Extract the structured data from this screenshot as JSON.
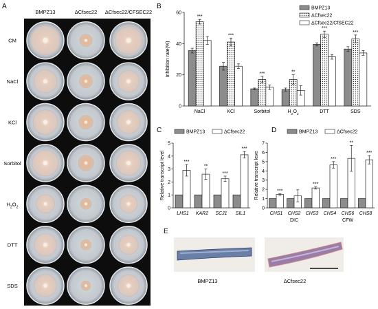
{
  "panels": {
    "a": "A",
    "b": "B",
    "c": "C",
    "d": "D",
    "e": "E"
  },
  "panel_a": {
    "strains": [
      "BMPZ13",
      "ΔCfsec22",
      "ΔCfsec22/CFSEC22"
    ],
    "conditions": [
      "CM",
      "NaCl",
      "KCl",
      "Sorbitol",
      "H2O2",
      "DTT",
      "SDS"
    ]
  },
  "panel_e": {
    "labels": [
      "BMPZ13",
      "ΔCfsec22"
    ]
  },
  "colors": {
    "wt": "#8c8c8c",
    "mutant": "#ffffff",
    "complemented": "#ffffff",
    "bar_edge": "#222222",
    "plate_bg": "#0d0d0d"
  },
  "chart_data": [
    {
      "panel": "B",
      "type": "bar",
      "ylabel": "Inhibition rate(%)",
      "ylim": [
        0,
        60
      ],
      "yticks": [
        0,
        20,
        40,
        60
      ],
      "categories": [
        "NaCl",
        "KCl",
        "Sorbitol",
        "H2O2",
        "DTT",
        "SDS"
      ],
      "series": [
        {
          "name": "BMPZ13",
          "values": [
            35.5,
            25.5,
            11,
            10.5,
            39.5,
            36.5
          ],
          "errors": [
            1.5,
            2.5,
            0.5,
            1,
            1,
            1.5
          ],
          "pattern": "solid"
        },
        {
          "name": "ΔCfsec22",
          "values": [
            54,
            41,
            17,
            17,
            46,
            43
          ],
          "errors": [
            1.5,
            2.5,
            2,
            3,
            2,
            2.5
          ],
          "pattern": "dots"
        },
        {
          "name": "ΔCfsec22/CfSEC22",
          "values": [
            42,
            25.5,
            12,
            10,
            31.5,
            34
          ],
          "errors": [
            2.5,
            1.5,
            1.5,
            3,
            1.5,
            1.5
          ],
          "pattern": "white"
        }
      ],
      "significance": [
        "***",
        "***",
        "***",
        "**",
        "***",
        "***"
      ],
      "legend": "top-right"
    },
    {
      "panel": "C",
      "type": "bar",
      "ylabel": "Relative transcript level",
      "ylim": [
        0,
        5
      ],
      "yticks": [
        0,
        1,
        2,
        3,
        4,
        5
      ],
      "categories": [
        "LHS1",
        "KAR2",
        "SCJ1",
        "SIL1"
      ],
      "series": [
        {
          "name": "BMPZ13",
          "values": [
            1,
            1,
            1,
            1
          ],
          "errors": [
            0,
            0,
            0,
            0
          ],
          "pattern": "solid"
        },
        {
          "name": "ΔCfsec22",
          "values": [
            2.9,
            2.6,
            2.25,
            4.1
          ],
          "errors": [
            0.45,
            0.4,
            0.2,
            0.25
          ],
          "pattern": "white"
        }
      ],
      "significance": [
        "***",
        "**",
        "***",
        "***"
      ],
      "legend": "top"
    },
    {
      "panel": "D",
      "type": "bar",
      "ylabel": "Relative transcript leve",
      "ylim": [
        0,
        7
      ],
      "yticks": [
        0,
        1,
        2,
        3,
        4,
        5,
        6,
        7
      ],
      "categories": [
        "CHS1",
        "CHS2",
        "CHS3",
        "CHS4",
        "CHS6",
        "CHS8"
      ],
      "groups": [
        {
          "label": "DIC",
          "range": [
            0,
            2
          ]
        },
        {
          "label": "CFW",
          "range": [
            3,
            5
          ]
        }
      ],
      "series": [
        {
          "name": "BMPZ13",
          "values": [
            1,
            1,
            1,
            1,
            1,
            1
          ],
          "errors": [
            0,
            0,
            0,
            0,
            0,
            0
          ],
          "pattern": "solid"
        },
        {
          "name": "ΔCfsec22",
          "values": [
            1.45,
            1.3,
            2.15,
            4.65,
            5.35,
            5.2
          ],
          "errors": [
            0.08,
            0.65,
            0.12,
            0.35,
            1.4,
            0.45
          ],
          "pattern": "white"
        }
      ],
      "significance": [
        "***",
        "",
        "***",
        "***",
        "**",
        "***"
      ],
      "legend": "top"
    }
  ]
}
